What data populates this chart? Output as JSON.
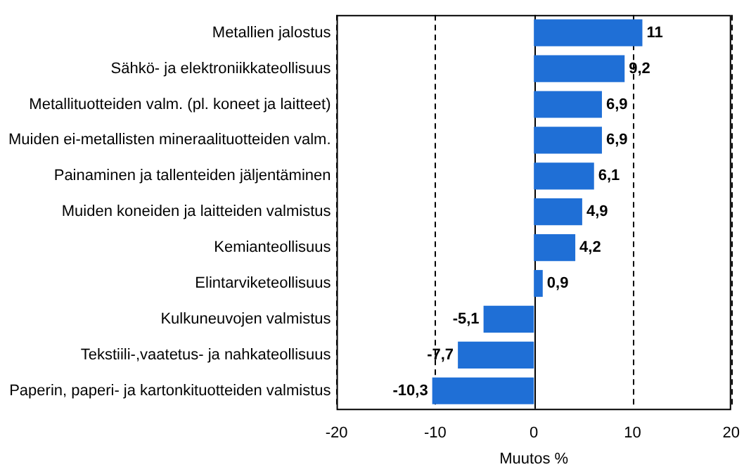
{
  "chart_data": {
    "type": "bar",
    "orientation": "horizontal",
    "xlabel": "Muutos %",
    "categories": [
      "Metallien jalostus",
      "Sähkö- ja elektroniikkateollisuus",
      "Metallituotteiden valm. (pl. koneet ja laitteet)",
      "Muiden ei-metallisten mineraalituotteiden valm.",
      "Painaminen ja tallenteiden jäljentäminen",
      "Muiden koneiden ja laitteiden valmistus",
      "Kemianteollisuus",
      "Elintarviketeollisuus",
      "Kulkuneuvojen valmistus",
      "Tekstiili-,vaatetus- ja nahkateollisuus",
      "Paperin, paperi- ja kartonkituotteiden valmistus"
    ],
    "values": [
      11,
      9.2,
      6.9,
      6.9,
      6.1,
      4.9,
      4.2,
      0.9,
      -5.1,
      -7.7,
      -10.3
    ],
    "value_labels": [
      "11",
      "9,2",
      "6,9",
      "6,9",
      "6,1",
      "4,9",
      "4,2",
      "0,9",
      "-5,1",
      "-7,7",
      "-10,3"
    ],
    "color": "#1f6fd6",
    "xlim": [
      -20,
      20
    ],
    "xticks": [
      -20,
      -10,
      0,
      10,
      20
    ],
    "grid": "x",
    "legend": false
  }
}
